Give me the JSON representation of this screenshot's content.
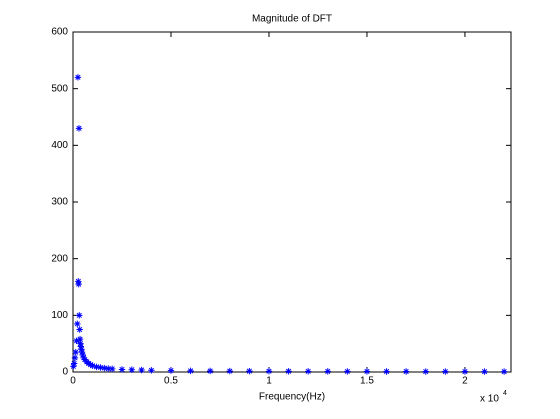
{
  "chart_data": {
    "type": "scatter",
    "title": "Magnitude of DFT",
    "x_label": "Frequency(Hz)",
    "x_multiplier": "x 10",
    "x_multiplier_exponent": "4",
    "marker": "asterisk",
    "series": [
      {
        "color": "#0000ff",
        "x": [
          20,
          60,
          100,
          140,
          180,
          220,
          250,
          270,
          290,
          306,
          320,
          340,
          360,
          380,
          400,
          430,
          460,
          500,
          550,
          600,
          700,
          800,
          900,
          1000,
          1200,
          1400,
          1600,
          1800,
          2000,
          2500,
          3000,
          3500,
          4000,
          5000,
          6000,
          7000,
          8000,
          9000,
          10000,
          11000,
          12000,
          13000,
          14000,
          15000,
          16000,
          17000,
          18000,
          19000,
          20000,
          21000,
          22000
        ],
        "values": [
          10,
          15,
          25,
          35,
          55,
          85,
          520,
          160,
          155,
          430,
          100,
          75,
          58,
          50,
          45,
          40,
          35,
          30,
          25,
          22,
          18,
          15,
          13,
          11,
          9,
          8,
          7,
          6,
          5.5,
          4.5,
          4,
          3.5,
          3,
          2.5,
          2,
          1.8,
          1.6,
          1.5,
          1.4,
          1.3,
          1.2,
          1.1,
          1,
          1,
          0.9,
          0.9,
          0.8,
          0.8,
          0.8,
          0.7,
          0.7
        ]
      }
    ],
    "xlim": [
      0,
      22350
    ],
    "xticks": [
      0,
      {
        "value": 5000,
        "label": "0.5"
      },
      {
        "value": 10000,
        "label": "1"
      },
      {
        "value": 15000,
        "label": "1.5"
      },
      {
        "value": 20000,
        "label": "2"
      }
    ],
    "ylim": [
      0,
      600
    ],
    "yticks": [
      0,
      100,
      200,
      300,
      400,
      500,
      600
    ],
    "grid": false
  }
}
